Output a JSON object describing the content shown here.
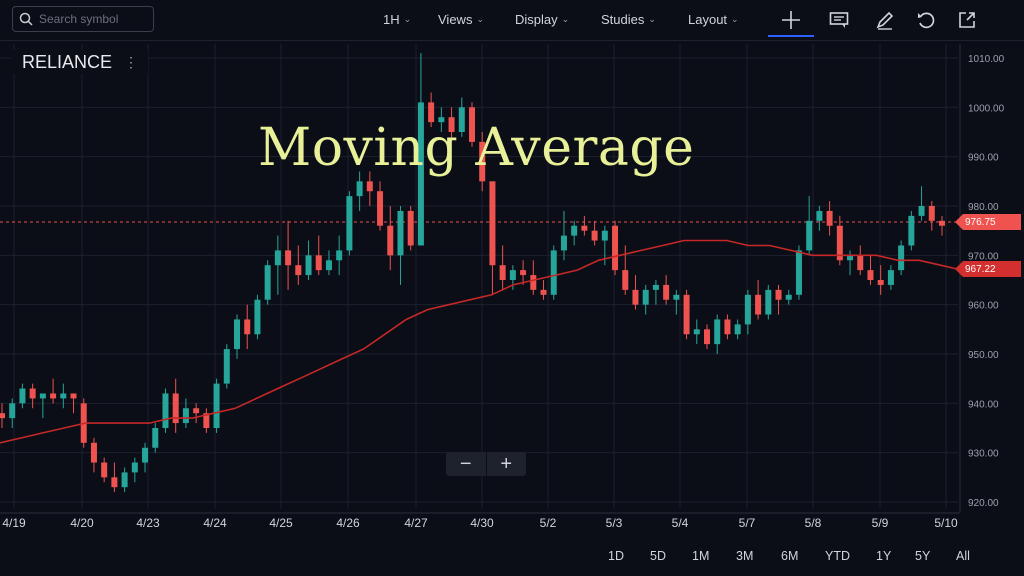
{
  "toolbar": {
    "search_placeholder": "Search symbol",
    "interval": "1H",
    "views": "Views",
    "display": "Display",
    "studies": "Studies",
    "layout": "Layout",
    "icons": [
      "crosshair-icon",
      "chat-icon",
      "pencil-icon",
      "undo-icon",
      "share-icon"
    ]
  },
  "symbol": {
    "name": "RELIANCE"
  },
  "overlay_title": "Moving Average",
  "zoom": {
    "minus": "−",
    "plus": "+"
  },
  "ranges": [
    "1D",
    "5D",
    "1M",
    "3M",
    "6M",
    "YTD",
    "1Y",
    "5Y",
    "All"
  ],
  "colors": {
    "up": "#26a69a",
    "down": "#ef5350",
    "ma": "#c62828",
    "title": "#e8f098",
    "background": "#0b0e16"
  },
  "price_tags": {
    "last": "976.75",
    "ma": "967.22"
  },
  "chart_data": {
    "type": "line",
    "title": "",
    "y_axis": {
      "min": 920,
      "max": 1010,
      "ticks": [
        "1010.00",
        "1000.00",
        "990.00",
        "980.00",
        "970.00",
        "960.00",
        "950.00",
        "940.00",
        "930.00",
        "920.00"
      ]
    },
    "x_axis": {
      "ticks": [
        "4/19",
        "4/20",
        "4/23",
        "4/24",
        "4/25",
        "4/26",
        "4/27",
        "4/30",
        "5/2",
        "5/3",
        "5/4",
        "5/7",
        "5/8",
        "5/9",
        "5/10"
      ]
    },
    "grid": true,
    "candles": [
      [
        938,
        940,
        935,
        937
      ],
      [
        937,
        941,
        935,
        940
      ],
      [
        940,
        944,
        939,
        943
      ],
      [
        943,
        944,
        939,
        941
      ],
      [
        941,
        942,
        937,
        942
      ],
      [
        942,
        945,
        940,
        941
      ],
      [
        941,
        944,
        939,
        942
      ],
      [
        942,
        942,
        938,
        941
      ],
      [
        940,
        941,
        931,
        932
      ],
      [
        932,
        933,
        926,
        928
      ],
      [
        928,
        929,
        924,
        925
      ],
      [
        925,
        928,
        922,
        923
      ],
      [
        923,
        927,
        922,
        926
      ],
      [
        926,
        929,
        924,
        928
      ],
      [
        928,
        932,
        926,
        931
      ],
      [
        931,
        936,
        930,
        935
      ],
      [
        935,
        943,
        934,
        942
      ],
      [
        942,
        945,
        934,
        936
      ],
      [
        936,
        941,
        935,
        939
      ],
      [
        939,
        940,
        936,
        938
      ],
      [
        938,
        939,
        934,
        935
      ],
      [
        935,
        945,
        934,
        944
      ],
      [
        944,
        952,
        943,
        951
      ],
      [
        951,
        958,
        949,
        957
      ],
      [
        957,
        960,
        951,
        954
      ],
      [
        954,
        962,
        953,
        961
      ],
      [
        961,
        969,
        960,
        968
      ],
      [
        968,
        974,
        962,
        971
      ],
      [
        971,
        977,
        963,
        968
      ],
      [
        968,
        972,
        964,
        966
      ],
      [
        966,
        973,
        965,
        970
      ],
      [
        970,
        974,
        966,
        967
      ],
      [
        967,
        971,
        966,
        969
      ],
      [
        969,
        974,
        966,
        971
      ],
      [
        971,
        983,
        970,
        982
      ],
      [
        982,
        987,
        979,
        985
      ],
      [
        985,
        987,
        980,
        983
      ],
      [
        983,
        985,
        975,
        976
      ],
      [
        976,
        980,
        967,
        970
      ],
      [
        970,
        980,
        964,
        979
      ],
      [
        979,
        980,
        971,
        972
      ],
      [
        972,
        1011,
        972,
        1001
      ],
      [
        1001,
        1003,
        996,
        997
      ],
      [
        997,
        1000,
        995,
        998
      ],
      [
        998,
        1000,
        993,
        995
      ],
      [
        995,
        1002,
        994,
        1000
      ],
      [
        1000,
        1001,
        992,
        993
      ],
      [
        993,
        995,
        983,
        985
      ],
      [
        985,
        985,
        962,
        968
      ],
      [
        968,
        972,
        963,
        965
      ],
      [
        965,
        968,
        963,
        967
      ],
      [
        967,
        969,
        964,
        966
      ],
      [
        966,
        969,
        962,
        963
      ],
      [
        963,
        965,
        961,
        962
      ],
      [
        962,
        972,
        961,
        971
      ],
      [
        971,
        979,
        969,
        974
      ],
      [
        974,
        977,
        972,
        976
      ],
      [
        976,
        978,
        974,
        975
      ],
      [
        975,
        977,
        972,
        973
      ],
      [
        973,
        976,
        968,
        975
      ],
      [
        976,
        977,
        966,
        967
      ],
      [
        967,
        972,
        962,
        963
      ],
      [
        963,
        966,
        959,
        960
      ],
      [
        960,
        964,
        958,
        963
      ],
      [
        963,
        965,
        960,
        964
      ],
      [
        964,
        966,
        960,
        961
      ],
      [
        961,
        963,
        958,
        962
      ],
      [
        962,
        963,
        953,
        954
      ],
      [
        954,
        957,
        952,
        955
      ],
      [
        955,
        956,
        951,
        952
      ],
      [
        952,
        958,
        950,
        957
      ],
      [
        957,
        958,
        953,
        954
      ],
      [
        954,
        957,
        953,
        956
      ],
      [
        956,
        963,
        954,
        962
      ],
      [
        962,
        965,
        957,
        958
      ],
      [
        958,
        964,
        957,
        963
      ],
      [
        963,
        964,
        958,
        961
      ],
      [
        961,
        963,
        960,
        962
      ],
      [
        962,
        972,
        961,
        971
      ],
      [
        971,
        982,
        970,
        977
      ],
      [
        977,
        980,
        975,
        979
      ],
      [
        979,
        981,
        974,
        976
      ],
      [
        976,
        978,
        968,
        969
      ],
      [
        969,
        971,
        966,
        970
      ],
      [
        970,
        972,
        966,
        967
      ],
      [
        967,
        970,
        964,
        965
      ],
      [
        965,
        968,
        962,
        964
      ],
      [
        964,
        968,
        963,
        967
      ],
      [
        967,
        973,
        966,
        972
      ],
      [
        972,
        979,
        971,
        978
      ],
      [
        978,
        984,
        977,
        980
      ],
      [
        980,
        981,
        975,
        977
      ],
      [
        977,
        978,
        974,
        976
      ]
    ],
    "series": [
      {
        "values": [
          932,
          933,
          934,
          935,
          936,
          936,
          936,
          936,
          937,
          937,
          938,
          939,
          941,
          943,
          945,
          947,
          949,
          951,
          954,
          957,
          959,
          960,
          961,
          962,
          964,
          965,
          966,
          967,
          969,
          970,
          971,
          972,
          973,
          973,
          973,
          972,
          972,
          971,
          970,
          970,
          970,
          970,
          969,
          969,
          968,
          967
        ]
      }
    ]
  }
}
